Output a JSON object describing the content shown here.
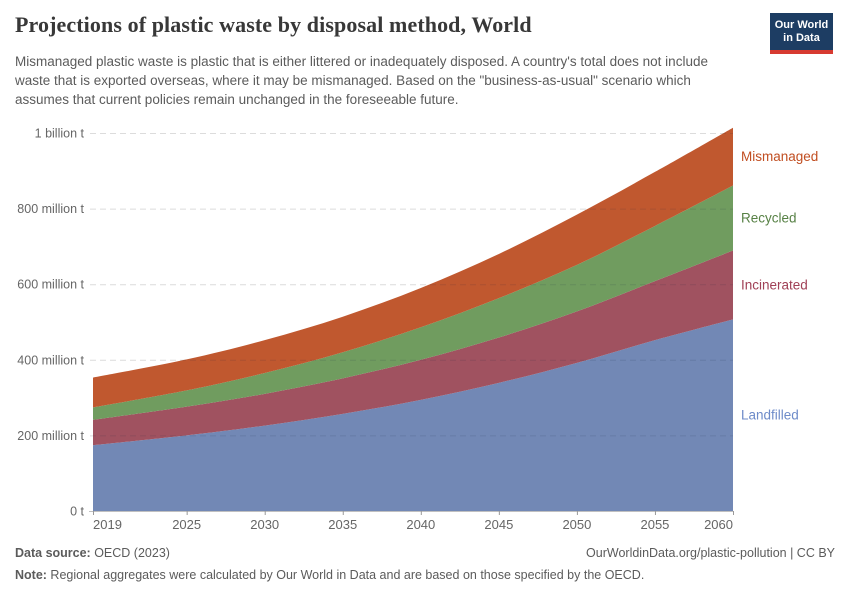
{
  "header": {
    "title": "Projections of plastic waste by disposal method, World",
    "subtitle": "Mismanaged plastic waste is plastic that is either littered or inadequately disposed. A country's total does not include waste that is exported overseas, where it may be mismanaged. Based on the \"business-as-usual\" scenario which assumes that current policies remain unchanged in the foreseeable future.",
    "logo": {
      "line1": "Our World",
      "line2": "in Data",
      "bg_color": "#1d3d63",
      "bar_color": "#d73a31"
    }
  },
  "chart_data": {
    "type": "area",
    "stacked": true,
    "title": "Projections of plastic waste by disposal method, World",
    "unit": "tonnes per year",
    "x": [
      2019,
      2025,
      2030,
      2035,
      2040,
      2045,
      2050,
      2055,
      2060
    ],
    "series": [
      {
        "name": "Landfilled",
        "color": "#7288B5",
        "label_color": "#6D8BC9",
        "values": [
          174,
          200,
          226,
          257,
          294,
          339,
          392,
          452,
          507
        ]
      },
      {
        "name": "Incinerated",
        "color": "#A05260",
        "label_color": "#A04056",
        "values": [
          67,
          76,
          84,
          94,
          106,
          120,
          136,
          156,
          182
        ]
      },
      {
        "name": "Recycled",
        "color": "#709C5F",
        "label_color": "#578145",
        "values": [
          33,
          43,
          55,
          69,
          86,
          104,
          123,
          146,
          172
        ]
      },
      {
        "name": "Mismanaged",
        "color": "#C0582F",
        "label_color": "#C14E21",
        "values": [
          79,
          82,
          87,
          94,
          104,
          117,
          133,
          143,
          153
        ]
      }
    ],
    "totals": [
      353,
      401,
      452,
      514,
      590,
      680,
      784,
      897,
      1014
    ],
    "x_ticks": [
      2019,
      2025,
      2030,
      2035,
      2040,
      2045,
      2050,
      2055,
      2060
    ],
    "y_ticks": [
      {
        "value": 0,
        "label": "0 t"
      },
      {
        "value": 200,
        "label": "200 million t"
      },
      {
        "value": 400,
        "label": "400 million t"
      },
      {
        "value": 600,
        "label": "600 million t"
      },
      {
        "value": 800,
        "label": "800 million t"
      },
      {
        "value": 1000,
        "label": "1 billion t"
      }
    ],
    "xlim": [
      2019,
      2060
    ],
    "ylim": [
      0,
      1050
    ],
    "grid": "horizontal-dashed",
    "legend_position": "right-of-plot"
  },
  "footer": {
    "source_label": "Data source:",
    "source_value": " OECD (2023)",
    "link": "OurWorldinData.org/plastic-pollution | CC BY",
    "note_label": "Note:",
    "note_value": " Regional aggregates were calculated by Our World in Data and are based on those specified by the OECD."
  }
}
